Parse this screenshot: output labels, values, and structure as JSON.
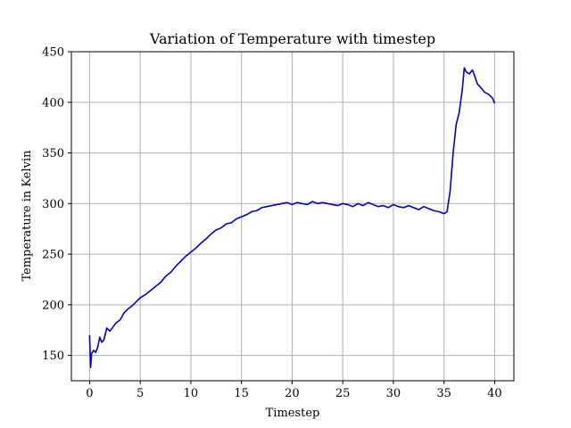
{
  "chart_data": {
    "type": "line",
    "title": "Variation of Temperature with timestep",
    "xlabel": "Timestep",
    "ylabel": "Temperature in Kelvin",
    "xlim": [
      -1.8,
      41.9
    ],
    "ylim": [
      125,
      450
    ],
    "xticks": [
      0,
      5,
      10,
      15,
      20,
      25,
      30,
      35,
      40
    ],
    "yticks": [
      150,
      200,
      250,
      300,
      350,
      400,
      450
    ],
    "grid": true,
    "line_color": "#0000cc",
    "series": [
      {
        "x": [
          0,
          0.1,
          0.2,
          0.4,
          0.6,
          0.8,
          1.0,
          1.2,
          1.4,
          1.7,
          2.0,
          2.3,
          2.6,
          3.0,
          3.4,
          3.8,
          4.2,
          4.6,
          5.0,
          5.5,
          6.0,
          6.5,
          7.0,
          7.5,
          8.0,
          8.5,
          9.0,
          9.5,
          10.0,
          10.5,
          11.0,
          11.5,
          12.0,
          12.5,
          13.0,
          13.5,
          14.0,
          14.5,
          15.0,
          15.5,
          16.0,
          16.5,
          17.0,
          17.5,
          18.0,
          18.5,
          19.0,
          19.5,
          20.0,
          20.5,
          21.0,
          21.5,
          22.0,
          22.5,
          23.0,
          23.5,
          24.0,
          24.5,
          25.0,
          25.5,
          26.0,
          26.5,
          27.0,
          27.5,
          28.0,
          28.5,
          29.0,
          29.5,
          30.0,
          30.5,
          31.0,
          31.5,
          32.0,
          32.5,
          33.0,
          33.5,
          34.0,
          34.5,
          35.0,
          35.3,
          35.6,
          35.9,
          36.2,
          36.5,
          36.8,
          37.0,
          37.2,
          37.5,
          37.8,
          38.0,
          38.3,
          38.6,
          39.0,
          39.4,
          39.8,
          40.0
        ],
        "values": [
          170,
          138,
          152,
          155,
          153,
          158,
          168,
          163,
          165,
          177,
          174,
          178,
          182,
          185,
          192,
          196,
          199,
          203,
          207,
          210,
          214,
          218,
          222,
          228,
          232,
          238,
          243,
          248,
          252,
          256,
          261,
          265,
          270,
          274,
          276,
          280,
          281,
          285,
          287,
          289,
          292,
          293,
          296,
          297,
          298,
          299,
          300,
          301,
          299,
          301,
          300,
          299,
          302,
          300,
          301,
          300,
          299,
          298,
          300,
          299,
          297,
          300,
          298,
          301,
          299,
          297,
          298,
          296,
          299,
          297,
          296,
          298,
          296,
          294,
          297,
          295,
          293,
          292,
          290,
          292,
          312,
          350,
          378,
          390,
          412,
          434,
          430,
          428,
          432,
          427,
          418,
          415,
          410,
          408,
          404,
          399
        ]
      }
    ]
  }
}
